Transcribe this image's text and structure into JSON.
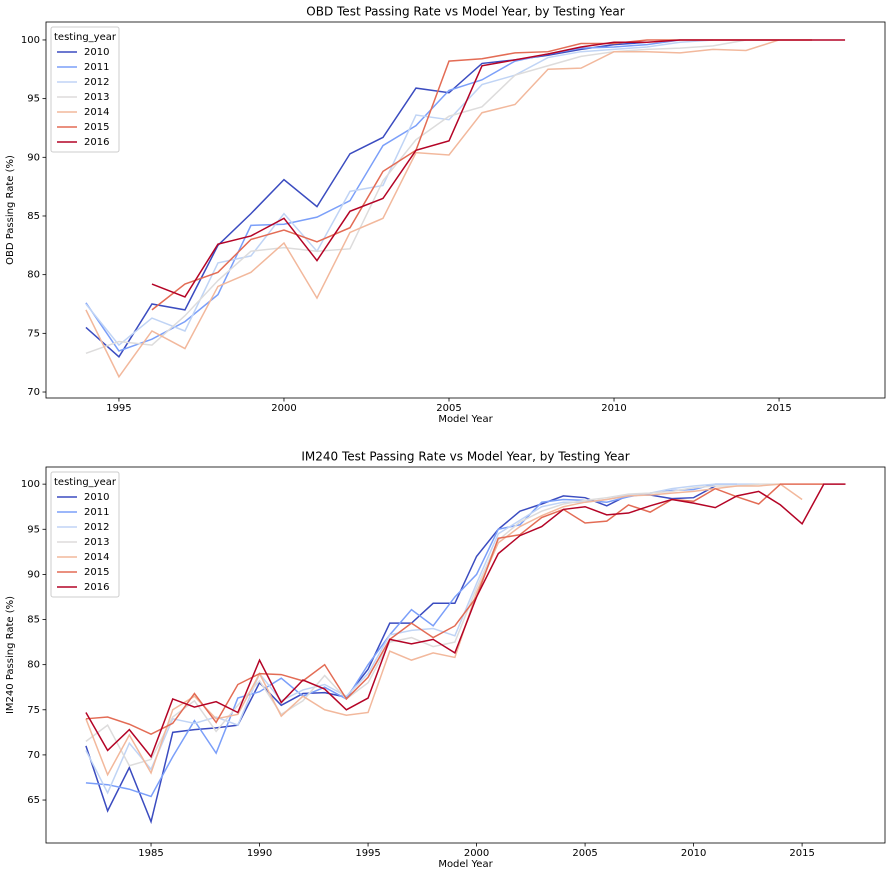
{
  "chart_data": [
    {
      "type": "line",
      "title": "OBD Test Passing Rate vs Model Year, by Testing Year",
      "xlabel": "Model Year",
      "ylabel": "OBD Passing Rate (%)",
      "x": [
        1994,
        1995,
        1996,
        1997,
        1998,
        1999,
        2000,
        2001,
        2002,
        2003,
        2004,
        2005,
        2006,
        2007,
        2008,
        2009,
        2010,
        2011,
        2012,
        2013,
        2014,
        2015,
        2016,
        2017
      ],
      "xlim": [
        1992.79,
        2018.21
      ],
      "xticks": [
        1995,
        2000,
        2005,
        2010,
        2015
      ],
      "ylim": [
        69.49,
        101.53
      ],
      "yticks": [
        70,
        75,
        80,
        85,
        90,
        95,
        100
      ],
      "legend_title": "testing_year",
      "legend": "upper left",
      "series": [
        {
          "name": "2010",
          "color": "#3b4cc0",
          "values": [
            75.5,
            73.0,
            77.5,
            77.0,
            82.5,
            85.2,
            88.1,
            85.8,
            90.3,
            91.7,
            95.9,
            95.5,
            98.0,
            98.3,
            98.7,
            99.2,
            99.6,
            99.8,
            null,
            null,
            null,
            null,
            null,
            null
          ]
        },
        {
          "name": "2011",
          "color": "#7b9ff9",
          "values": [
            77.6,
            73.5,
            74.5,
            76.0,
            78.3,
            84.2,
            84.3,
            84.9,
            86.3,
            91.0,
            92.7,
            95.7,
            96.6,
            98.2,
            98.8,
            99.3,
            99.4,
            99.6,
            100,
            null,
            null,
            null,
            null,
            null
          ]
        },
        {
          "name": "2012",
          "color": "#c0d4f5",
          "values": [
            77.5,
            74.0,
            76.3,
            75.2,
            81.0,
            81.6,
            85.2,
            82.0,
            87.1,
            87.6,
            93.6,
            93.2,
            96.2,
            97.0,
            98.5,
            99.0,
            99.2,
            99.4,
            99.8,
            100,
            null,
            null,
            null,
            null
          ]
        },
        {
          "name": "2013",
          "color": "#dddcdc",
          "values": [
            73.3,
            74.3,
            74.0,
            76.5,
            79.5,
            82.0,
            82.3,
            82.0,
            82.2,
            88.0,
            91.5,
            93.5,
            94.3,
            97.0,
            97.8,
            98.6,
            99.0,
            99.2,
            99.3,
            99.5,
            100,
            null,
            null,
            null
          ]
        },
        {
          "name": "2014",
          "color": "#f2b89c",
          "values": [
            77.0,
            71.3,
            75.2,
            73.7,
            79.0,
            80.2,
            82.7,
            78.0,
            83.6,
            84.8,
            90.4,
            90.2,
            93.8,
            94.5,
            97.5,
            97.6,
            99.0,
            99.0,
            98.9,
            99.2,
            99.1,
            100,
            null,
            null
          ]
        },
        {
          "name": "2015",
          "color": "#e36c55",
          "values": [
            null,
            null,
            77.0,
            79.2,
            80.2,
            83.0,
            83.8,
            82.8,
            84.0,
            88.8,
            90.6,
            98.2,
            98.4,
            98.9,
            99.0,
            99.7,
            99.7,
            100,
            100,
            100,
            100,
            100,
            100,
            null
          ]
        },
        {
          "name": "2016",
          "color": "#b40426",
          "values": [
            null,
            null,
            79.2,
            78.1,
            82.6,
            83.3,
            84.8,
            81.2,
            85.4,
            86.5,
            90.6,
            91.4,
            97.8,
            98.3,
            98.8,
            99.4,
            99.8,
            99.8,
            100,
            100,
            100,
            100,
            100,
            100
          ]
        }
      ]
    },
    {
      "type": "line",
      "title": "IM240 Test Passing Rate vs Model Year, by Testing Year",
      "xlabel": "Model Year",
      "ylabel": "IM240 Passing Rate (%)",
      "x": [
        1982,
        1983,
        1984,
        1985,
        1986,
        1987,
        1988,
        1989,
        1990,
        1991,
        1992,
        1993,
        1994,
        1995,
        1996,
        1997,
        1998,
        1999,
        2000,
        2001,
        2002,
        2003,
        2004,
        2005,
        2006,
        2007,
        2008,
        2009,
        2010,
        2011,
        2012,
        2013,
        2014,
        2015,
        2016,
        2017
      ],
      "xlim": [
        1980.16,
        2018.82
      ],
      "xticks": [
        1985,
        1990,
        1995,
        2000,
        2005,
        2010,
        2015
      ],
      "ylim": [
        60.24,
        101.9
      ],
      "yticks": [
        65,
        70,
        75,
        80,
        85,
        90,
        95,
        100
      ],
      "legend_title": "testing_year",
      "legend": "upper left",
      "series": [
        {
          "name": "2010",
          "color": "#3b4cc0",
          "values": [
            71.0,
            63.8,
            68.6,
            62.6,
            72.5,
            72.8,
            73.0,
            73.3,
            78.0,
            75.5,
            76.8,
            76.9,
            76.4,
            79.5,
            84.6,
            84.6,
            86.8,
            86.8,
            92.0,
            95.0,
            97.0,
            97.8,
            98.7,
            98.5,
            97.6,
            98.8,
            98.8,
            98.4,
            98.5,
            99.8,
            null,
            null,
            null,
            null,
            null,
            null
          ]
        },
        {
          "name": "2011",
          "color": "#7b9ff9",
          "values": [
            66.9,
            66.7,
            66.2,
            65.4,
            69.8,
            73.8,
            70.2,
            76.3,
            77.0,
            78.5,
            76.5,
            77.5,
            76.2,
            80.0,
            83.3,
            86.1,
            84.3,
            87.5,
            90.0,
            95.0,
            95.5,
            98.0,
            98.3,
            98.2,
            98.0,
            98.6,
            99.0,
            99.3,
            99.4,
            100,
            100,
            null,
            null,
            null,
            null,
            null
          ]
        },
        {
          "name": "2012",
          "color": "#c0d4f5",
          "values": [
            70.5,
            65.8,
            71.3,
            68.4,
            74.0,
            73.5,
            74.2,
            73.3,
            79.0,
            76.0,
            77.2,
            77.8,
            76.5,
            79.0,
            83.3,
            83.8,
            84.0,
            83.2,
            89.0,
            94.5,
            96.0,
            97.5,
            98.0,
            98.0,
            98.3,
            98.8,
            99.0,
            99.5,
            99.8,
            100,
            100,
            100,
            null,
            null,
            null,
            null
          ]
        },
        {
          "name": "2013",
          "color": "#dddcdc",
          "values": [
            71.5,
            73.3,
            68.8,
            69.5,
            74.2,
            76.0,
            72.6,
            75.5,
            78.2,
            74.5,
            76.0,
            78.8,
            76.2,
            78.0,
            82.5,
            83.0,
            82.0,
            82.5,
            88.5,
            93.8,
            95.8,
            97.0,
            97.8,
            98.2,
            98.5,
            98.9,
            99.0,
            99.2,
            99.6,
            99.8,
            99.8,
            100,
            100,
            null,
            null,
            null
          ]
        },
        {
          "name": "2014",
          "color": "#f2b89c",
          "values": [
            74.0,
            67.8,
            72.2,
            68.0,
            75.0,
            76.5,
            74.0,
            74.5,
            79.0,
            74.3,
            76.5,
            75.0,
            74.4,
            74.7,
            81.5,
            80.5,
            81.3,
            80.8,
            88.0,
            93.5,
            95.3,
            96.5,
            97.5,
            98.0,
            98.3,
            98.7,
            98.8,
            99.0,
            99.2,
            99.5,
            99.8,
            99.8,
            100,
            98.3,
            null,
            null
          ]
        },
        {
          "name": "2015",
          "color": "#e36c55",
          "values": [
            74.0,
            74.2,
            73.4,
            72.3,
            73.5,
            76.8,
            73.6,
            77.8,
            79.0,
            78.9,
            78.2,
            80.0,
            76.2,
            78.6,
            82.8,
            84.6,
            83.0,
            84.3,
            87.5,
            94.0,
            94.4,
            96.3,
            97.2,
            95.7,
            95.9,
            97.7,
            96.9,
            98.3,
            98.1,
            99.5,
            98.6,
            97.8,
            100,
            100,
            100,
            null
          ]
        },
        {
          "name": "2016",
          "color": "#b40426",
          "values": [
            74.7,
            70.5,
            72.8,
            69.8,
            76.2,
            75.3,
            75.9,
            74.7,
            80.5,
            75.8,
            78.3,
            77.3,
            75.0,
            76.3,
            82.8,
            82.3,
            82.8,
            81.3,
            87.5,
            92.3,
            94.3,
            95.3,
            97.2,
            97.5,
            96.6,
            96.8,
            97.6,
            98.3,
            97.9,
            97.4,
            98.7,
            99.2,
            97.7,
            95.6,
            100,
            100
          ]
        }
      ]
    }
  ]
}
